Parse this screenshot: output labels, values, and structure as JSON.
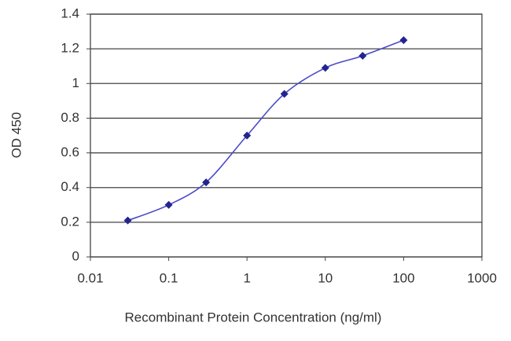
{
  "chart_data": {
    "type": "line",
    "x_label": "Recombinant Protein Concentration (ng/ml)",
    "y_label": "OD 450",
    "x_scale": "log",
    "x": [
      0.03,
      0.1,
      0.3,
      1,
      3,
      10,
      30,
      100
    ],
    "series": [
      {
        "name": "OD 450",
        "color": "#24248f",
        "values": [
          0.21,
          0.3,
          0.43,
          0.7,
          0.94,
          1.09,
          1.16,
          1.25
        ]
      }
    ],
    "xlim": [
      0.01,
      1000
    ],
    "xticks": [
      0.01,
      0.1,
      1,
      10,
      100,
      1000
    ],
    "ylim": [
      0,
      1.4
    ],
    "yticks": [
      0,
      0.2,
      0.4,
      0.6,
      0.8,
      1,
      1.2,
      1.4
    ],
    "grid": true
  }
}
